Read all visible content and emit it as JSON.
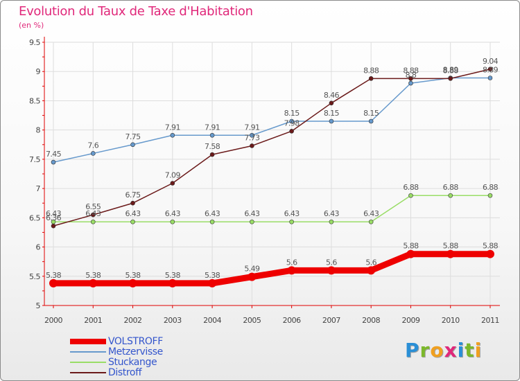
{
  "title": "Evolution du Taux de Taxe d'Habitation",
  "subtitle": "(en %)",
  "logo": {
    "letters": [
      "P",
      "r",
      "o",
      "x",
      "i",
      "t",
      "i"
    ],
    "colors": [
      "#2a8fd6",
      "#7cb82a",
      "#f0a020",
      "#e0287a",
      "#2a8fd6",
      "#7cb82a",
      "#f0a020"
    ]
  },
  "colors": {
    "title": "#e0287a",
    "legend_text": "#3355cc",
    "axis": "#e00000",
    "grid": "#dddddd",
    "VOLSTROFF": "#ee0000",
    "Metzervisse": "#6699cc",
    "Stuckange": "#99dd66",
    "Distroff": "#6b1a1a"
  },
  "chart_data": {
    "type": "line",
    "title": "Evolution du Taux de Taxe d'Habitation",
    "subtitle": "(en %)",
    "xlabel": "",
    "ylabel": "",
    "x": [
      "2000",
      "2001",
      "2002",
      "2003",
      "2004",
      "2005",
      "2006",
      "2007",
      "2008",
      "2009",
      "2010",
      "2011"
    ],
    "y_ticks": [
      "5",
      "5.5",
      "6",
      "6.5",
      "7",
      "7.5",
      "8",
      "8.5",
      "9",
      "9.5"
    ],
    "ylim": [
      5,
      9.5
    ],
    "grid": true,
    "legend_position": "bottom-left",
    "series": [
      {
        "name": "VOLSTROFF",
        "values": [
          5.38,
          5.38,
          5.38,
          5.38,
          5.38,
          5.49,
          5.6,
          5.6,
          5.6,
          5.88,
          5.88,
          5.88
        ],
        "labels": [
          "5.38",
          "5.38",
          "5.38",
          "5.38",
          "5.38",
          "5.49",
          "5.6",
          "5.6",
          "5.6",
          "5.88",
          "5.88",
          "5.88"
        ]
      },
      {
        "name": "Metzervisse",
        "values": [
          7.45,
          7.6,
          7.75,
          7.91,
          7.91,
          7.91,
          8.15,
          8.15,
          8.15,
          8.8,
          8.89,
          8.89
        ],
        "labels": [
          "7.45",
          "7.6",
          "7.75",
          "7.91",
          "7.91",
          "7.91",
          "8.15",
          "8.15",
          "8.15",
          "8.8",
          "8.89",
          "8.89"
        ]
      },
      {
        "name": "Stuckange",
        "values": [
          6.43,
          6.43,
          6.43,
          6.43,
          6.43,
          6.43,
          6.43,
          6.43,
          6.43,
          6.88,
          6.88,
          6.88
        ],
        "labels": [
          "6.43",
          "6.43",
          "6.43",
          "6.43",
          "6.43",
          "6.43",
          "6.43",
          "6.43",
          "6.43",
          "6.88",
          "6.88",
          "6.88"
        ]
      },
      {
        "name": "Distroff",
        "values": [
          6.36,
          6.55,
          6.75,
          7.09,
          7.58,
          7.73,
          7.98,
          8.46,
          8.88,
          8.88,
          8.88,
          9.04
        ],
        "labels": [
          "6.36",
          "6.55",
          "6.75",
          "7.09",
          "7.58",
          "7.73",
          "7.98",
          "8.46",
          "8.88",
          "8.88",
          "8.88",
          "9.04"
        ]
      }
    ]
  }
}
